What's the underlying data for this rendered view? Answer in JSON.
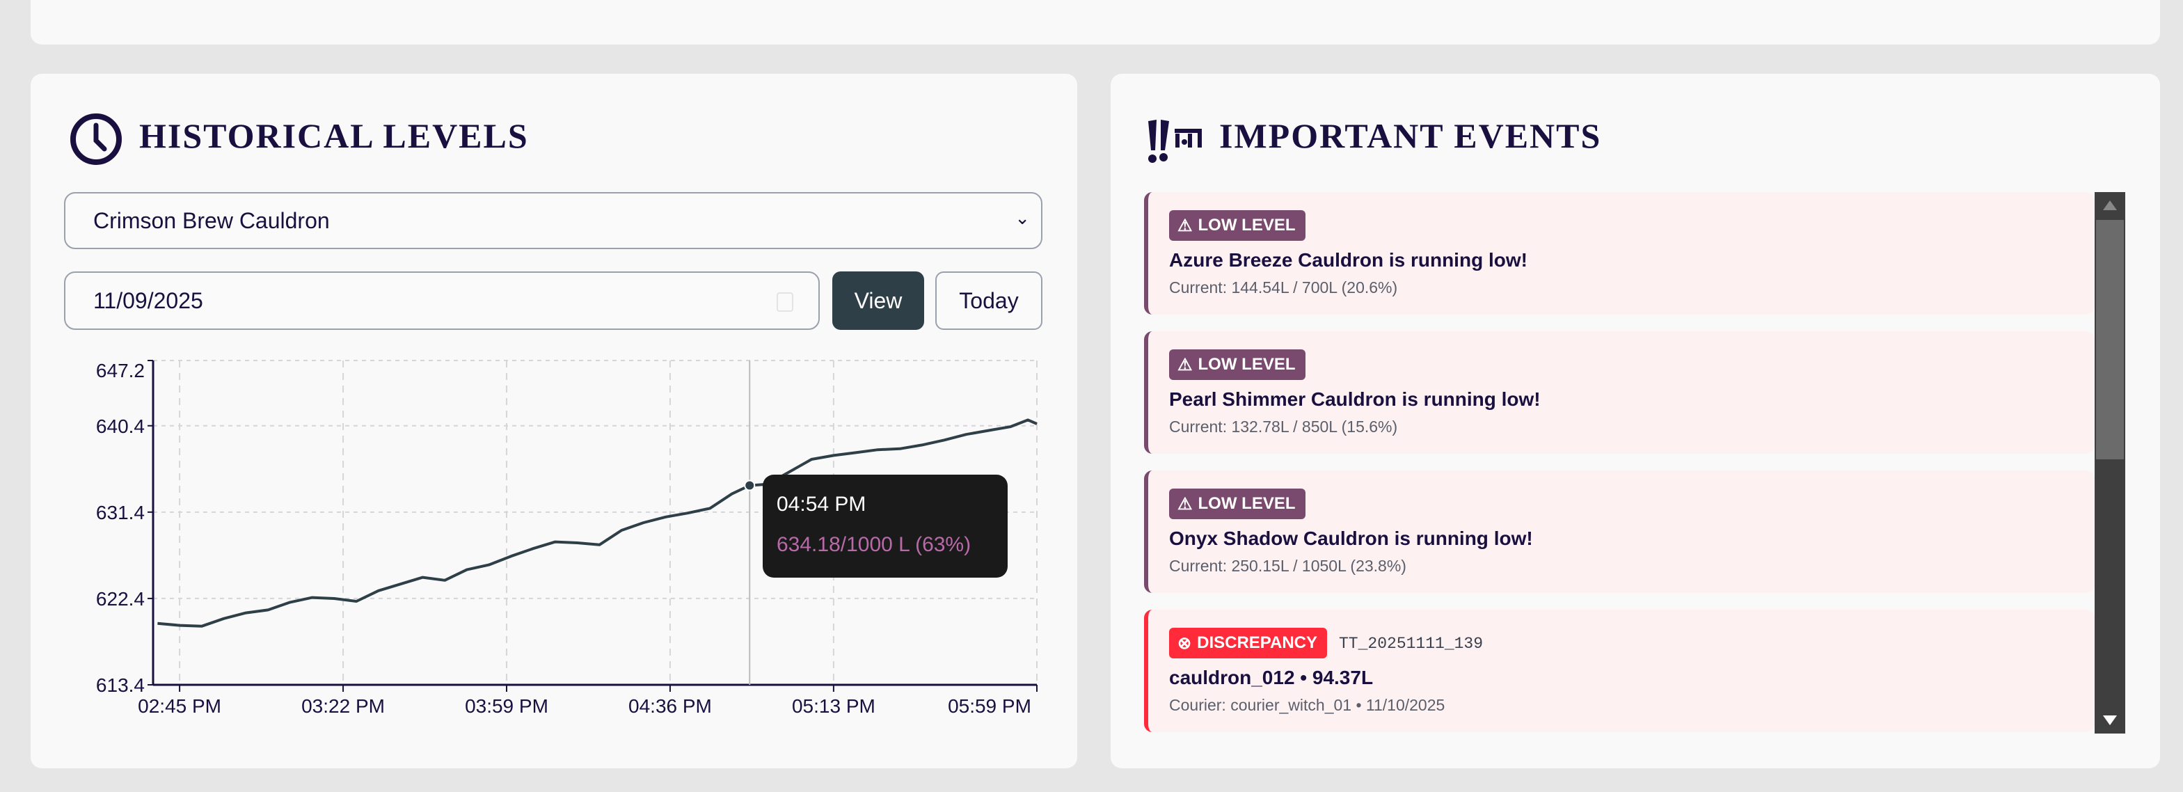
{
  "historical": {
    "title": "HISTORICAL LEVELS",
    "icon": "clock-icon",
    "cauldron_select": "Crimson Brew Cauldron",
    "date_value": "11/09/2025",
    "view_label": "View",
    "today_label": "Today",
    "tooltip": {
      "time": "04:54 PM",
      "value": "634.18/1000 L (63%)"
    }
  },
  "events": {
    "title": "IMPORTANT EVENTS",
    "icon": "alert-icon",
    "items": [
      {
        "badge": "LOW LEVEL",
        "type": "low",
        "title": "Azure Breeze Cauldron is running low!",
        "detail": "Current: 144.54L / 700L (20.6%)"
      },
      {
        "badge": "LOW LEVEL",
        "type": "low",
        "title": "Pearl Shimmer Cauldron is running low!",
        "detail": "Current: 132.78L / 850L (15.6%)"
      },
      {
        "badge": "LOW LEVEL",
        "type": "low",
        "title": "Onyx Shadow Cauldron is running low!",
        "detail": "Current: 250.15L / 1050L (23.8%)"
      },
      {
        "badge": "DISCREPANCY",
        "type": "discrepancy",
        "ref": "TT_20251111_139",
        "title": "cauldron_012 • 94.37L",
        "detail": "Courier: courier_witch_01 • 11/10/2025"
      }
    ]
  },
  "colors": {
    "low": "#7a4a6e",
    "discrepancy": "#ff2a3a",
    "line": "#2f3f48",
    "tooltip_value": "#b86aa8"
  },
  "chart_data": {
    "type": "line",
    "xlim": [
      "14:39",
      "17:59"
    ],
    "ylim": [
      613.4,
      647.2
    ],
    "grid": true,
    "ytick_labels": [
      "613.4",
      "622.4",
      "631.4",
      "640.4",
      "647.2"
    ],
    "xtick_labels": [
      [
        "14:45",
        "02:45 PM"
      ],
      [
        "15:22",
        "03:22 PM"
      ],
      [
        "15:59",
        "03:59 PM"
      ],
      [
        "16:36",
        "04:36 PM"
      ],
      [
        "17:13",
        "05:13 PM"
      ],
      [
        "17:59",
        "05:59 PM"
      ]
    ],
    "highlight": {
      "x": "16:54",
      "y": 634.18
    },
    "x": [
      "14:40",
      "14:45",
      "14:50",
      "14:55",
      "15:00",
      "15:05",
      "15:10",
      "15:15",
      "15:20",
      "15:25",
      "15:30",
      "15:35",
      "15:40",
      "15:45",
      "15:50",
      "15:55",
      "16:00",
      "16:05",
      "16:10",
      "16:15",
      "16:20",
      "16:25",
      "16:30",
      "16:35",
      "16:40",
      "16:45",
      "16:50",
      "16:54",
      "16:58",
      "17:03",
      "17:08",
      "17:13",
      "17:18",
      "17:23",
      "17:28",
      "17:33",
      "17:38",
      "17:43",
      "17:48",
      "17:53",
      "17:57",
      "17:59"
    ],
    "y": [
      619.8,
      619.6,
      619.5,
      620.3,
      620.9,
      621.2,
      622.0,
      622.5,
      622.4,
      622.1,
      623.2,
      623.9,
      624.6,
      624.3,
      625.4,
      625.9,
      626.8,
      627.6,
      628.3,
      628.2,
      628.0,
      629.5,
      630.3,
      630.9,
      631.3,
      631.8,
      633.3,
      634.18,
      634.3,
      635.6,
      636.9,
      637.3,
      637.6,
      637.9,
      638.0,
      638.4,
      638.9,
      639.5,
      639.9,
      640.3,
      641.0,
      640.6
    ]
  }
}
